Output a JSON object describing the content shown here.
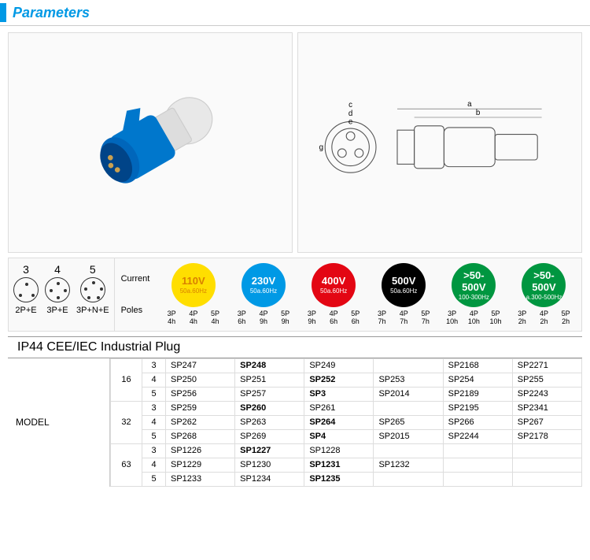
{
  "header": {
    "title": "Parameters"
  },
  "pole_configs": [
    {
      "num": "3",
      "label": "2P+E"
    },
    {
      "num": "4",
      "label": "3P+E"
    },
    {
      "num": "5",
      "label": "3P+N+E"
    }
  ],
  "spec_labels": {
    "current": "Current",
    "poles": "Poles"
  },
  "voltages": [
    {
      "v": "110V",
      "sub": "50a.60Hz",
      "bg": "#ffde00",
      "fg": "#d98000",
      "poles": [
        {
          "p": "3P",
          "h": "4h"
        },
        {
          "p": "4P",
          "h": "4h"
        },
        {
          "p": "5P",
          "h": "4h"
        }
      ]
    },
    {
      "v": "230V",
      "sub": "50a.60Hz",
      "bg": "#0099e5",
      "fg": "#ffffff",
      "poles": [
        {
          "p": "3P",
          "h": "6h"
        },
        {
          "p": "4P",
          "h": "9h"
        },
        {
          "p": "5P",
          "h": "9h"
        }
      ]
    },
    {
      "v": "400V",
      "sub": "50a.60Hz",
      "bg": "#e30613",
      "fg": "#ffffff",
      "poles": [
        {
          "p": "3P",
          "h": "9h"
        },
        {
          "p": "4P",
          "h": "6h"
        },
        {
          "p": "5P",
          "h": "6h"
        }
      ]
    },
    {
      "v": "500V",
      "sub": "50a.60Hz",
      "bg": "#000000",
      "fg": "#ffffff",
      "poles": [
        {
          "p": "3P",
          "h": "7h"
        },
        {
          "p": "4P",
          "h": "7h"
        },
        {
          "p": "5P",
          "h": "7h"
        }
      ]
    },
    {
      "v": ">50-500V",
      "sub": "100-300Hz",
      "bg": "#009640",
      "fg": "#ffffff",
      "poles": [
        {
          "p": "3P",
          "h": "10h"
        },
        {
          "p": "4P",
          "h": "10h"
        },
        {
          "p": "5P",
          "h": "10h"
        }
      ]
    },
    {
      "v": ">50-500V",
      "sub": "a.300-500Hz",
      "bg": "#009640",
      "fg": "#ffffff",
      "poles": [
        {
          "p": "3P",
          "h": "2h"
        },
        {
          "p": "4P",
          "h": "2h"
        },
        {
          "p": "5P",
          "h": "2h"
        }
      ]
    }
  ],
  "section_title": "IP44 CEE/IEC Industrial Plug",
  "model_label": "MODEL",
  "model_table": {
    "groups": [
      {
        "amp": "16",
        "rows": [
          {
            "poles": "3",
            "cells": [
              "SP247",
              {
                "t": "SP248",
                "b": true
              },
              "SP249",
              "",
              "SP2168",
              "SP2271"
            ]
          },
          {
            "poles": "4",
            "cells": [
              "SP250",
              "SP251",
              {
                "t": "SP252",
                "b": true
              },
              "SP253",
              "SP254",
              "SP255"
            ]
          },
          {
            "poles": "5",
            "cells": [
              "SP256",
              "SP257",
              {
                "t": "SP3",
                "b": true
              },
              "SP2014",
              "SP2189",
              "SP2243"
            ]
          }
        ]
      },
      {
        "amp": "32",
        "rows": [
          {
            "poles": "3",
            "cells": [
              "SP259",
              {
                "t": "SP260",
                "b": true
              },
              "SP261",
              "",
              "SP2195",
              "SP2341"
            ]
          },
          {
            "poles": "4",
            "cells": [
              "SP262",
              "SP263",
              {
                "t": "SP264",
                "b": true
              },
              "SP265",
              "SP266",
              "SP267"
            ]
          },
          {
            "poles": "5",
            "cells": [
              "SP268",
              "SP269",
              {
                "t": "SP4",
                "b": true
              },
              "SP2015",
              "SP2244",
              "SP2178"
            ]
          }
        ]
      },
      {
        "amp": "63",
        "rows": [
          {
            "poles": "3",
            "cells": [
              "SP1226",
              {
                "t": "SP1227",
                "b": true
              },
              "SP1228",
              "",
              "",
              ""
            ]
          },
          {
            "poles": "4",
            "cells": [
              "SP1229",
              "SP1230",
              {
                "t": "SP1231",
                "b": true
              },
              "SP1232",
              "",
              ""
            ]
          },
          {
            "poles": "5",
            "cells": [
              "SP1233",
              "SP1234",
              {
                "t": "SP1235",
                "b": true
              },
              "",
              "",
              ""
            ]
          }
        ]
      }
    ]
  },
  "diagram_labels": {
    "a": "a",
    "b": "b",
    "c": "c",
    "d": "d",
    "e": "e",
    "g": "g"
  }
}
